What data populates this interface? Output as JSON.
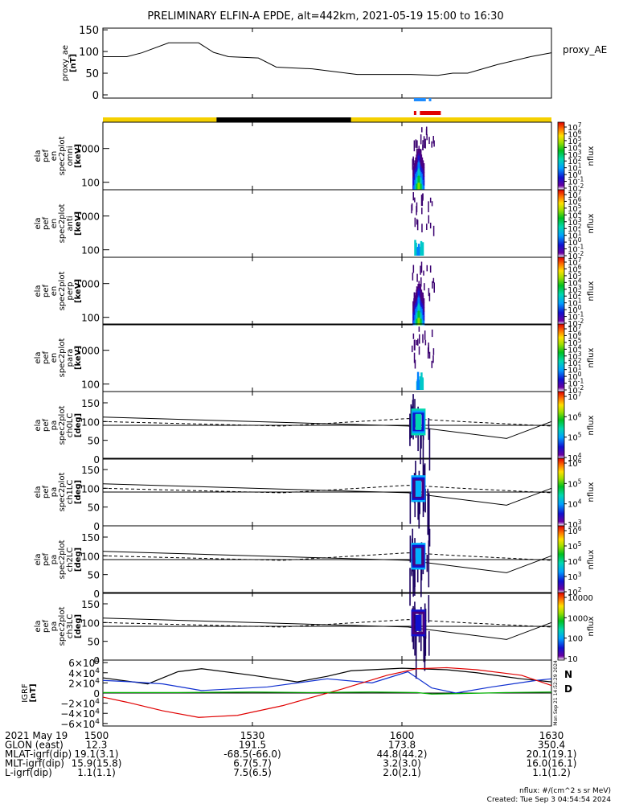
{
  "title": "PRELIMINARY ELFIN-A EPDE, alt=442km, 2021-05-19 15:00 to 16:30",
  "chart_data": [
    {
      "type": "line",
      "id": "proxy_ae",
      "ylabel_lines": [
        "proxy_ae",
        "[nT]"
      ],
      "legend": "proxy_AE",
      "ylim": [
        0,
        150
      ],
      "yticks": [
        "150",
        "100",
        "50",
        "0"
      ],
      "x": [
        15.0,
        15.08,
        15.13,
        15.22,
        15.32,
        15.37,
        15.42,
        15.52,
        15.58,
        15.7,
        15.85,
        15.93,
        16.03,
        16.12,
        16.17,
        16.22,
        16.32,
        16.43,
        16.5
      ],
      "y": [
        88,
        88,
        97,
        120,
        120,
        98,
        88,
        85,
        64,
        60,
        47,
        47,
        47,
        45,
        50,
        50,
        70,
        88,
        97
      ]
    },
    {
      "type": "bar",
      "id": "science-zone-bars",
      "note_colors": {
        "blue": "#1e8cff",
        "red": "#e00000",
        "yellow": "#f5d000",
        "black": "#000000"
      }
    },
    {
      "type": "heatmap",
      "id": "panel-1",
      "ylabel_lines": [
        "ela",
        "pef",
        "en",
        "spec2plot",
        "omni",
        "[keV]"
      ],
      "ylim": [
        60,
        6000
      ],
      "yscale": "log",
      "yticks": [
        "1000",
        "100"
      ],
      "colorbar_ticks": [
        "10^7",
        "10^6",
        "10^5",
        "10^4",
        "10^3",
        "10^2",
        "10^1",
        "10^0",
        "10^-1",
        "10^-2"
      ],
      "colorbar_label": "nflux",
      "burst_time": [
        16.03,
        16.08
      ],
      "burst_intensity": "high"
    },
    {
      "type": "heatmap",
      "id": "panel-2",
      "ylabel_lines": [
        "ela",
        "pef",
        "en",
        "spec2plot",
        "anti",
        "[keV]"
      ],
      "ylim": [
        60,
        6000
      ],
      "yscale": "log",
      "yticks": [
        "1000",
        "100"
      ],
      "colorbar_ticks": [
        "10^7",
        "10^6",
        "10^5",
        "10^4",
        "10^3",
        "10^2",
        "10^1",
        "10^0",
        "10^-1",
        "10^-2"
      ],
      "colorbar_label": "nflux",
      "burst_time": [
        16.03,
        16.08
      ],
      "burst_intensity": "low"
    },
    {
      "type": "heatmap",
      "id": "panel-3",
      "ylabel_lines": [
        "ela",
        "pef",
        "en",
        "spec2plot",
        "perp",
        "[keV]"
      ],
      "ylim": [
        60,
        6000
      ],
      "yscale": "log",
      "yticks": [
        "1000",
        "100"
      ],
      "colorbar_ticks": [
        "10^7",
        "10^6",
        "10^5",
        "10^4",
        "10^3",
        "10^2",
        "10^1",
        "10^0",
        "10^-1",
        "10^-2"
      ],
      "colorbar_label": "nflux",
      "burst_time": [
        16.03,
        16.08
      ],
      "burst_intensity": "high"
    },
    {
      "type": "heatmap",
      "id": "panel-4",
      "ylabel_lines": [
        "ela",
        "pef",
        "en",
        "spec2plot",
        "para",
        "[keV]"
      ],
      "ylim": [
        60,
        6000
      ],
      "yscale": "log",
      "yticks": [
        "1000",
        "100"
      ],
      "colorbar_ticks": [
        "10^7",
        "10^6",
        "10^5",
        "10^4",
        "10^3",
        "10^2",
        "10^1",
        "10^0",
        "10^-1",
        "10^-2"
      ],
      "colorbar_label": "nflux",
      "burst_time": [
        16.03,
        16.08
      ],
      "burst_intensity": "low"
    },
    {
      "type": "heatmap",
      "id": "panel-5",
      "ylabel_lines": [
        "ela",
        "pef",
        "pa",
        "spec2plot",
        "ch0LC",
        "[deg]"
      ],
      "ylim": [
        0,
        180
      ],
      "yticks": [
        "150",
        "100",
        "50",
        "0"
      ],
      "colorbar_ticks": [
        "10^7",
        "10^6",
        "10^5",
        "10^4"
      ],
      "colorbar_label": "nflux",
      "burst_time": [
        16.03,
        16.08
      ],
      "burst_intensity": "high"
    },
    {
      "type": "heatmap",
      "id": "panel-6",
      "ylabel_lines": [
        "ela",
        "pef",
        "pa",
        "spec2plot",
        "ch1LC",
        "[deg]"
      ],
      "ylim": [
        0,
        180
      ],
      "yticks": [
        "150",
        "100",
        "50",
        "0"
      ],
      "colorbar_ticks": [
        "10^6",
        "10^5",
        "10^4",
        "10^3"
      ],
      "colorbar_label": "nflux",
      "burst_time": [
        16.03,
        16.08
      ],
      "burst_intensity": "mid"
    },
    {
      "type": "heatmap",
      "id": "panel-7",
      "ylabel_lines": [
        "ela",
        "pef",
        "pa",
        "spec2plot",
        "ch2LC",
        "[deg]"
      ],
      "ylim": [
        0,
        180
      ],
      "yticks": [
        "150",
        "100",
        "50",
        "0"
      ],
      "colorbar_ticks": [
        "10^6",
        "10^5",
        "10^4",
        "10^3",
        "10^2"
      ],
      "colorbar_label": "nflux",
      "burst_time": [
        16.03,
        16.08
      ],
      "burst_intensity": "mid"
    },
    {
      "type": "heatmap",
      "id": "panel-8",
      "ylabel_lines": [
        "ela",
        "pef",
        "pa",
        "spec2plot",
        "ch3LC",
        "[deg]"
      ],
      "ylim": [
        0,
        180
      ],
      "yticks": [
        "150",
        "100",
        "50",
        "0"
      ],
      "colorbar_ticks": [
        "10000",
        "1000",
        "100",
        "10"
      ],
      "colorbar_label": "nflux",
      "burst_time": [
        16.03,
        16.08
      ],
      "burst_intensity": "low"
    },
    {
      "type": "line",
      "id": "igrf",
      "ylabel_lines": [
        "IGRF",
        "[nT]"
      ],
      "ylim": [
        -65000,
        65000
      ],
      "yticks": [
        "6×10^4",
        "4×10^4",
        "2×10^4",
        "0",
        "−2×10^4",
        "−4×10^4",
        "−6×10^4"
      ],
      "side_labels": {
        "N": "#0000cc",
        "D": "#e07000"
      },
      "side_caption": "Mon Sep 21 14:52:29 2024",
      "series": [
        {
          "color": "#000000",
          "x": [
            15.0,
            15.15,
            15.25,
            15.33,
            15.5,
            15.65,
            15.75,
            15.83,
            16.0,
            16.15,
            16.25,
            16.4,
            16.5
          ],
          "y": [
            30000,
            18000,
            42000,
            48000,
            35000,
            22000,
            33000,
            44000,
            49000,
            46000,
            40000,
            28000,
            22000
          ]
        },
        {
          "color": "#1030d0",
          "x": [
            15.0,
            15.1,
            15.2,
            15.33,
            15.55,
            15.75,
            15.9,
            16.02,
            16.1,
            16.18,
            16.3,
            16.45,
            16.5
          ],
          "y": [
            25000,
            22000,
            18000,
            5000,
            12000,
            28000,
            20000,
            42000,
            10000,
            0,
            12000,
            25000,
            28000
          ]
        },
        {
          "color": "#e00000",
          "x": [
            15.0,
            15.08,
            15.2,
            15.32,
            15.45,
            15.6,
            15.8,
            15.95,
            16.05,
            16.15,
            16.25,
            16.4,
            16.5
          ],
          "y": [
            -8000,
            -18000,
            -35000,
            -48000,
            -44000,
            -25000,
            8000,
            35000,
            48000,
            50000,
            46000,
            35000,
            15000
          ]
        },
        {
          "color": "#00b000",
          "x": [
            15.0,
            15.25,
            15.5,
            15.7,
            15.9,
            16.05,
            16.1,
            16.2,
            16.35,
            16.5
          ],
          "y": [
            1000,
            1000,
            2000,
            1000,
            2000,
            1000,
            -2000,
            -1000,
            1000,
            2000
          ]
        }
      ]
    }
  ],
  "footer": {
    "rows": [
      {
        "label": "2021 May 19",
        "values": [
          "1500",
          "1530",
          "1600",
          "1630"
        ]
      },
      {
        "label": "GLON (east)",
        "values": [
          "12.3",
          "191.5",
          "173.8",
          "350.4"
        ]
      },
      {
        "label": "MLAT-igrf(dip)",
        "values": [
          "19.1(3.1)",
          "-68.5(-66.0)",
          "44.8(44.2)",
          "20.1(19.1)"
        ]
      },
      {
        "label": "MLT-igrf(dip)",
        "values": [
          "15.9(15.8)",
          "6.7(5.7)",
          "3.2(3.0)",
          "16.0(16.1)"
        ]
      },
      {
        "label": "L-igrf(dip)",
        "values": [
          "1.1(1.1)",
          "7.5(6.5)",
          "2.0(2.1)",
          "1.1(1.2)"
        ]
      }
    ],
    "units_note": "nflux: #/(cm^2 s sr MeV)",
    "created": "Created: Tue Sep  3 04:54:54 2024"
  }
}
